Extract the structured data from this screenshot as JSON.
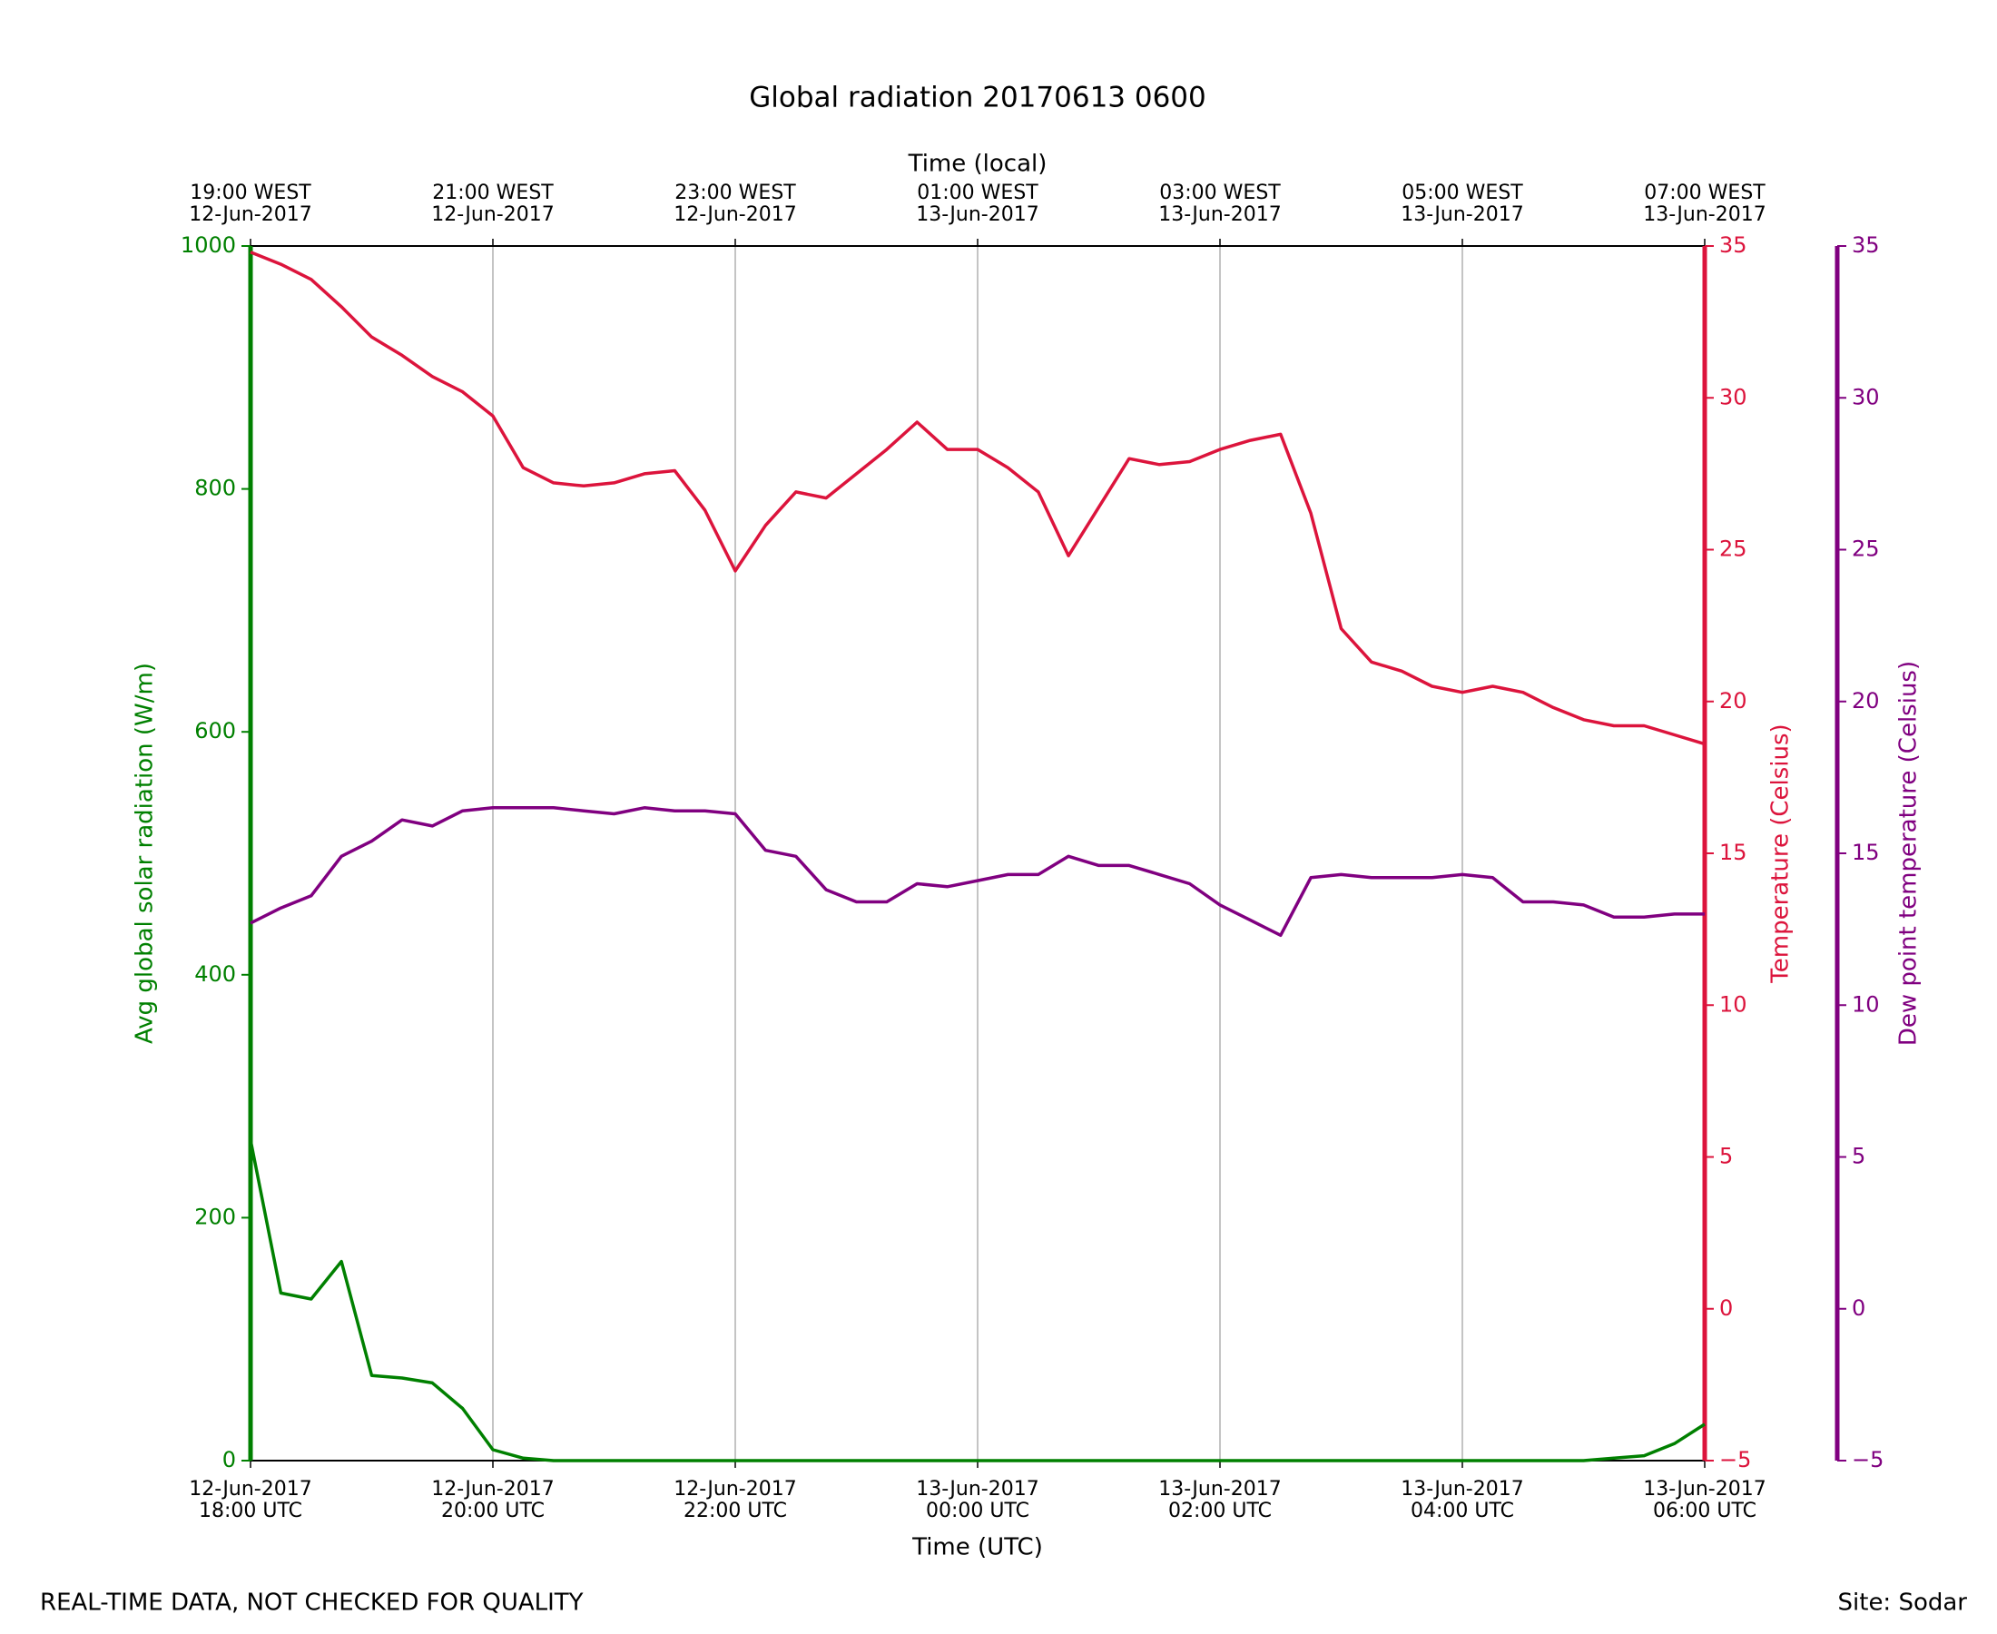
{
  "chart_data": {
    "type": "line",
    "title": "Global radiation 20170613 0600",
    "x_label": "Time (UTC)",
    "x2_label": "Time (local)",
    "y_label": "Avg global solar radiation (W/m)",
    "y2_label": "Temperature (Celsius)",
    "y3_label": "Dew point temperature (Celsius)",
    "footer_left": "REAL-TIME DATA, NOT CHECKED FOR QUALITY",
    "footer_right": "Site: Sodar",
    "grid": "x",
    "x": [
      "2017-06-12 18:00",
      "2017-06-12 18:15",
      "2017-06-12 18:30",
      "2017-06-12 18:45",
      "2017-06-12 19:00",
      "2017-06-12 19:15",
      "2017-06-12 19:30",
      "2017-06-12 19:45",
      "2017-06-12 20:00",
      "2017-06-12 20:15",
      "2017-06-12 20:30",
      "2017-06-12 20:45",
      "2017-06-12 21:00",
      "2017-06-12 21:15",
      "2017-06-12 21:30",
      "2017-06-12 21:45",
      "2017-06-12 22:00",
      "2017-06-12 22:15",
      "2017-06-12 22:30",
      "2017-06-12 22:45",
      "2017-06-12 23:00",
      "2017-06-12 23:15",
      "2017-06-12 23:30",
      "2017-06-12 23:45",
      "2017-06-13 00:00",
      "2017-06-13 00:15",
      "2017-06-13 00:30",
      "2017-06-13 00:45",
      "2017-06-13 01:00",
      "2017-06-13 01:15",
      "2017-06-13 01:30",
      "2017-06-13 01:45",
      "2017-06-13 02:00",
      "2017-06-13 02:15",
      "2017-06-13 02:30",
      "2017-06-13 02:45",
      "2017-06-13 03:00",
      "2017-06-13 03:15",
      "2017-06-13 03:30",
      "2017-06-13 03:45",
      "2017-06-13 04:00",
      "2017-06-13 04:15",
      "2017-06-13 04:30",
      "2017-06-13 04:45",
      "2017-06-13 05:00",
      "2017-06-13 05:15",
      "2017-06-13 05:30",
      "2017-06-13 05:45",
      "2017-06-13 06:00"
    ],
    "xlim": [
      "2017-06-12 18:00",
      "2017-06-13 06:00"
    ],
    "xticks": [
      {
        "value": "2017-06-12 18:00",
        "label": "12-Jun-2017\n18:00 UTC"
      },
      {
        "value": "2017-06-12 20:00",
        "label": "12-Jun-2017\n20:00 UTC"
      },
      {
        "value": "2017-06-12 22:00",
        "label": "12-Jun-2017\n22:00 UTC"
      },
      {
        "value": "2017-06-13 00:00",
        "label": "13-Jun-2017\n00:00 UTC"
      },
      {
        "value": "2017-06-13 02:00",
        "label": "13-Jun-2017\n02:00 UTC"
      },
      {
        "value": "2017-06-13 04:00",
        "label": "13-Jun-2017\n04:00 UTC"
      },
      {
        "value": "2017-06-13 06:00",
        "label": "13-Jun-2017\n06:00 UTC"
      }
    ],
    "x2ticks": [
      {
        "value": "2017-06-12 18:00",
        "label": "19:00 WEST\n12-Jun-2017"
      },
      {
        "value": "2017-06-12 20:00",
        "label": "21:00 WEST\n12-Jun-2017"
      },
      {
        "value": "2017-06-12 22:00",
        "label": "23:00 WEST\n12-Jun-2017"
      },
      {
        "value": "2017-06-13 00:00",
        "label": "01:00 WEST\n13-Jun-2017"
      },
      {
        "value": "2017-06-13 02:00",
        "label": "03:00 WEST\n13-Jun-2017"
      },
      {
        "value": "2017-06-13 04:00",
        "label": "05:00 WEST\n13-Jun-2017"
      },
      {
        "value": "2017-06-13 06:00",
        "label": "07:00 WEST\n13-Jun-2017"
      }
    ],
    "ylim": [
      0,
      1000
    ],
    "yticks": [
      0,
      200,
      400,
      600,
      800,
      1000
    ],
    "y2lim": [
      -5,
      35
    ],
    "y2ticks": [
      {
        "value": -5,
        "label": "−5"
      },
      0,
      5,
      10,
      15,
      20,
      25,
      30,
      35
    ],
    "y3lim": [
      -5,
      35
    ],
    "y3ticks": [
      {
        "value": -5,
        "label": "−5"
      },
      0,
      5,
      10,
      15,
      20,
      25,
      30,
      35
    ],
    "y_color": "#008000",
    "y2_color": "#dc143c",
    "y3_color": "#800080",
    "series": [
      {
        "name": "Avg global solar radiation",
        "color": "#008000",
        "axis": "y",
        "values": [
          264,
          138,
          133,
          164,
          70,
          68,
          64,
          43,
          9,
          2,
          0,
          0,
          0,
          0,
          0,
          0,
          0,
          0,
          0,
          0,
          0,
          0,
          0,
          0,
          0,
          0,
          0,
          0,
          0,
          0,
          0,
          0,
          0,
          0,
          0,
          0,
          0,
          0,
          0,
          0,
          0,
          0,
          0,
          0,
          0,
          2,
          4,
          14,
          30
        ]
      },
      {
        "name": "Temperature",
        "color": "#dc143c",
        "axis": "y2",
        "values": [
          34.8,
          34.4,
          33.9,
          33.0,
          32.0,
          31.4,
          30.7,
          30.2,
          29.4,
          27.7,
          27.2,
          27.1,
          27.2,
          27.5,
          27.6,
          26.3,
          24.3,
          25.8,
          26.9,
          26.7,
          27.5,
          28.3,
          29.2,
          28.3,
          28.3,
          27.7,
          26.9,
          24.8,
          26.4,
          28.0,
          27.8,
          27.9,
          28.3,
          28.6,
          28.8,
          26.2,
          22.4,
          21.3,
          21.0,
          20.5,
          20.3,
          20.5,
          20.3,
          19.8,
          19.4,
          19.2,
          19.2,
          18.9,
          18.6
        ]
      },
      {
        "name": "Dew point temperature",
        "color": "#800080",
        "axis": "y3",
        "values": [
          12.7,
          13.2,
          13.6,
          14.9,
          15.4,
          16.1,
          15.9,
          16.4,
          16.5,
          16.5,
          16.5,
          16.4,
          16.3,
          16.5,
          16.4,
          16.4,
          16.3,
          15.1,
          14.9,
          13.8,
          13.4,
          13.4,
          14.0,
          13.9,
          14.1,
          14.3,
          14.3,
          14.9,
          14.6,
          14.6,
          14.3,
          14.0,
          13.3,
          12.8,
          12.3,
          14.2,
          14.3,
          14.2,
          14.2,
          14.2,
          14.3,
          14.2,
          13.4,
          13.4,
          13.3,
          12.9,
          12.9,
          13.0,
          13.0
        ]
      }
    ]
  }
}
